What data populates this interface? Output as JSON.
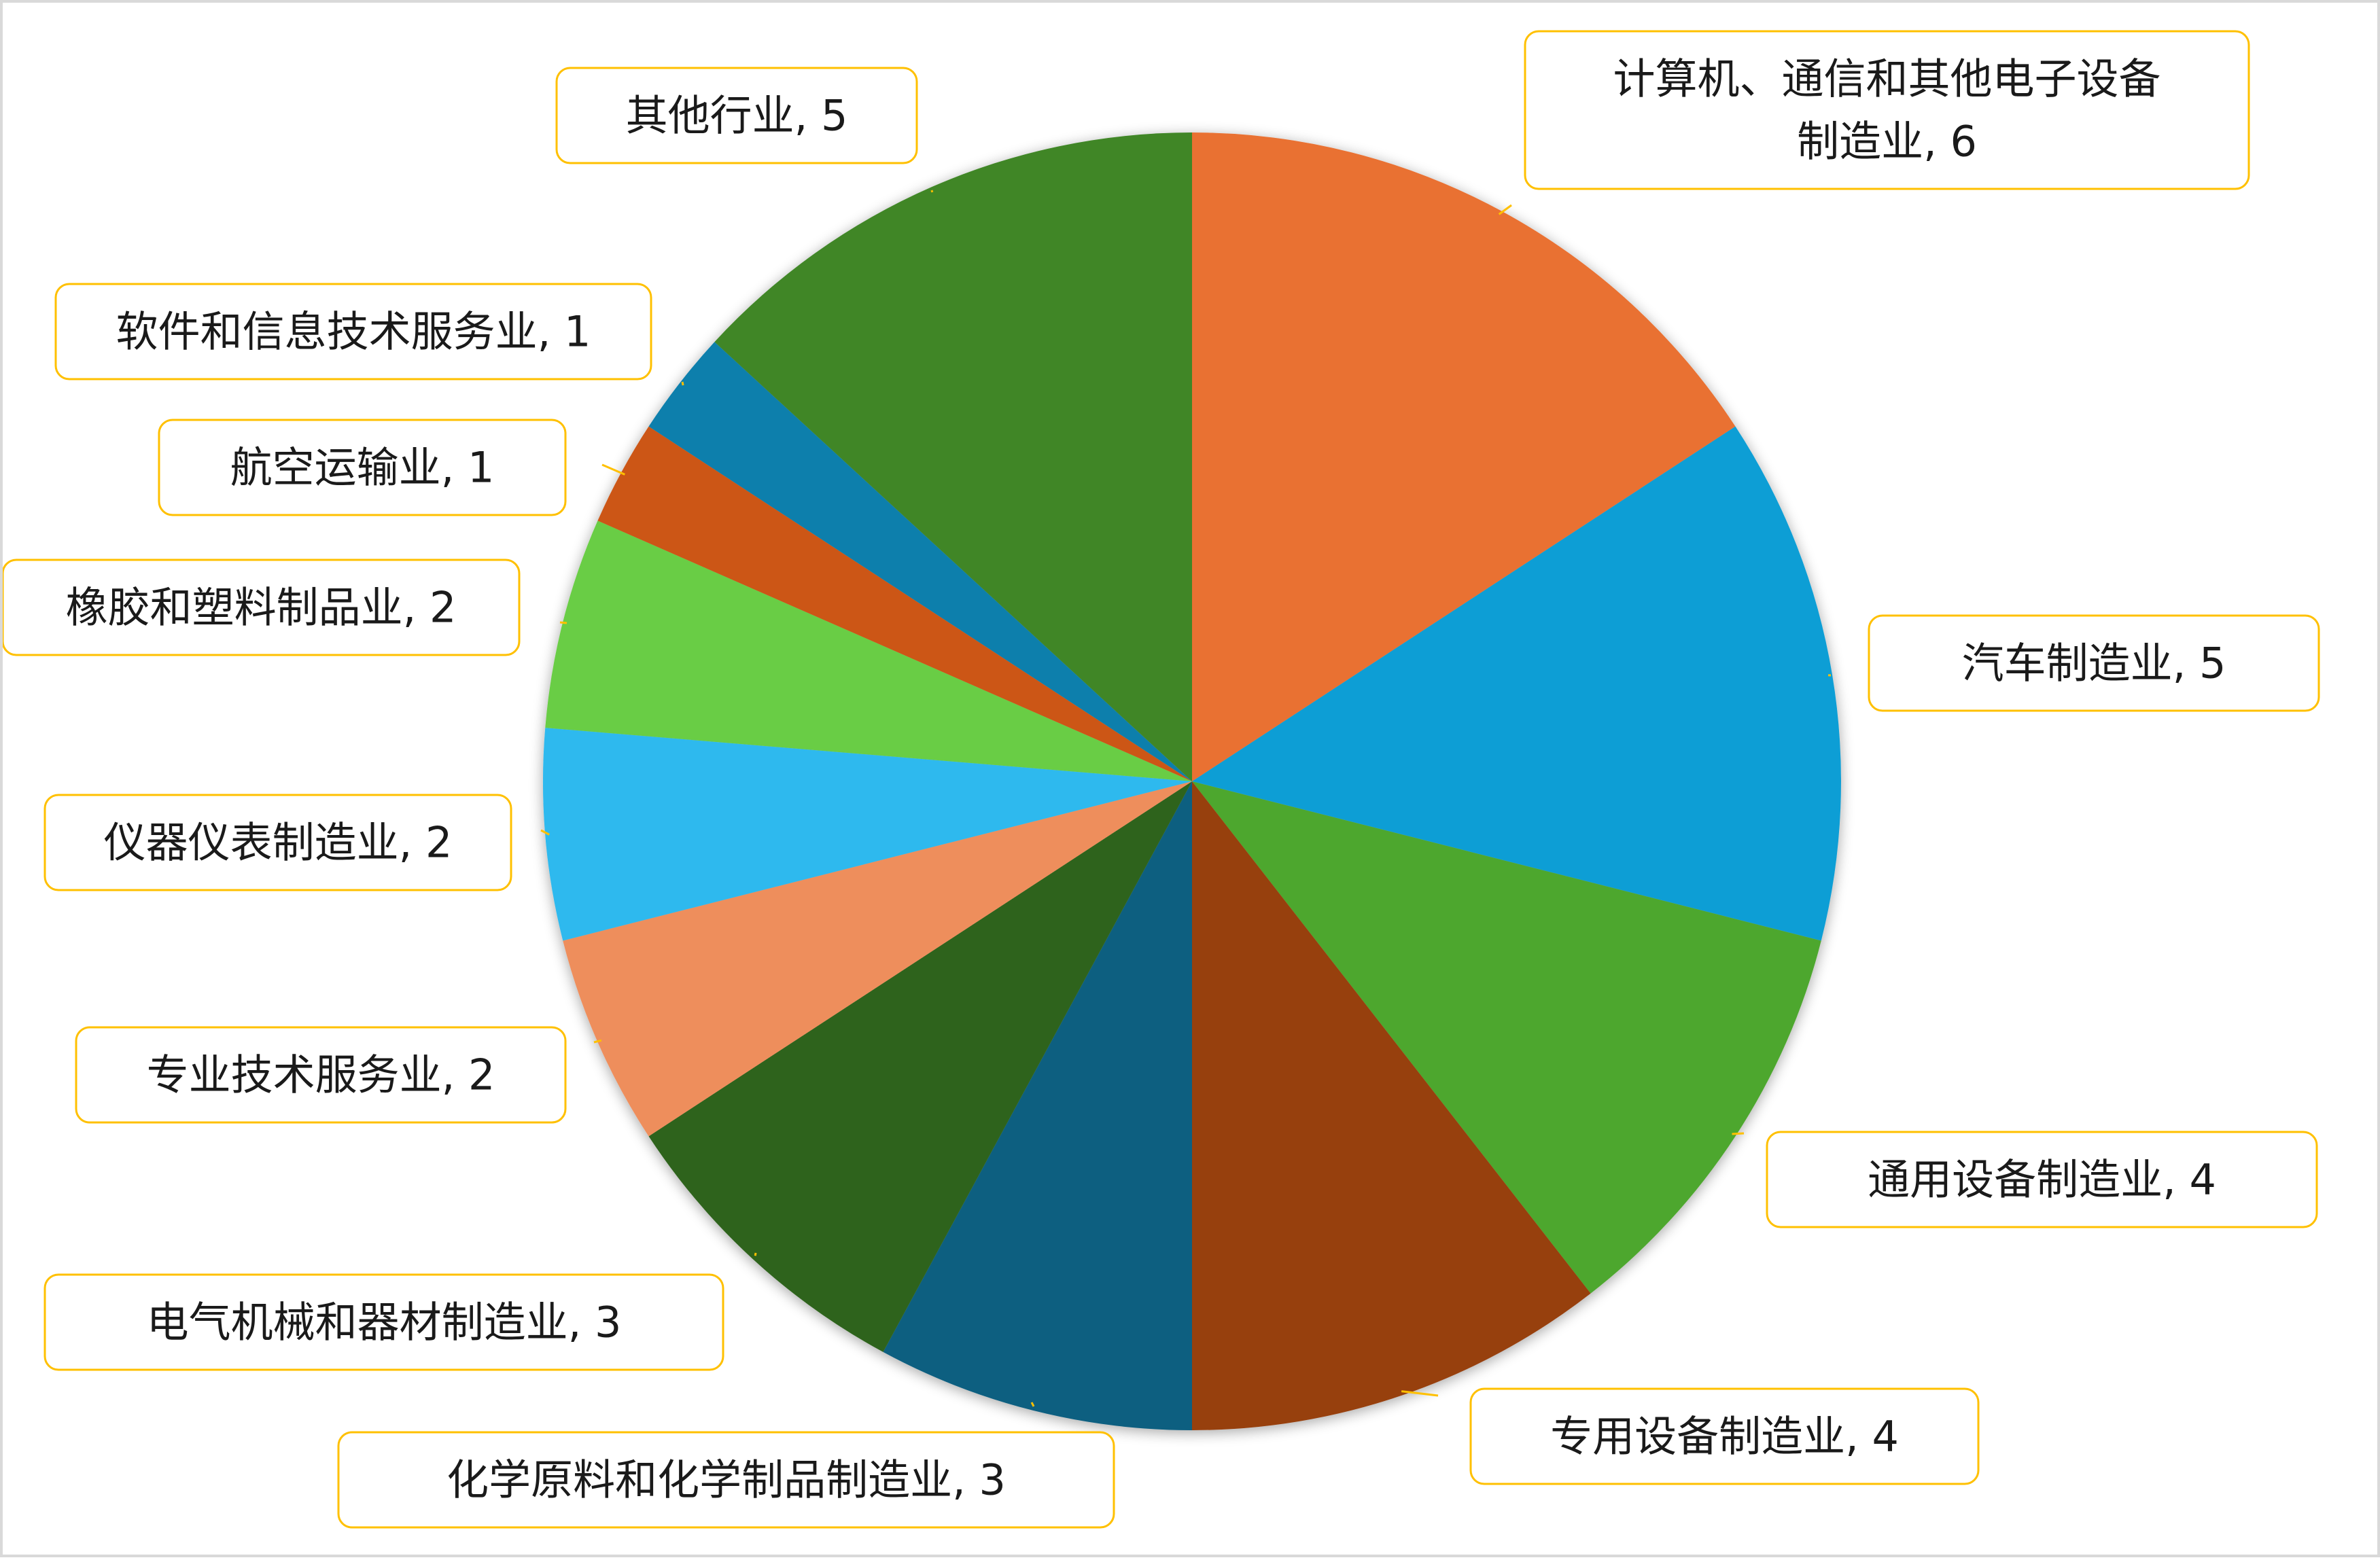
{
  "chart_data": {
    "type": "pie",
    "start_angle_deg": 0,
    "direction": "clockwise",
    "legend": "none",
    "slices": [
      {
        "label": "计算机、通信和其他电子设备制造业",
        "value": 6,
        "color": "#e97132",
        "label_lines": [
          "计算机、通信和其他电子设备",
          "制造业, 6"
        ]
      },
      {
        "label": "汽车制造业",
        "value": 5,
        "color": "#0f9ed5",
        "label_lines": [
          "汽车制造业, 5"
        ]
      },
      {
        "label": "通用设备制造业",
        "value": 4,
        "color": "#4ea72e",
        "label_lines": [
          "通用设备制造业, 4"
        ]
      },
      {
        "label": "专用设备制造业",
        "value": 4,
        "color": "#973f10",
        "label_lines": [
          "专用设备制造业, 4"
        ]
      },
      {
        "label": "化学原料和化学制品制造业",
        "value": 3,
        "color": "#0a5e80",
        "label_lines": [
          "化学原料和化学制品制造业, 3"
        ]
      },
      {
        "label": "电气机械和器材制造业",
        "value": 3,
        "color": "#2f641c",
        "label_lines": [
          "电气机械和器材制造业, 3"
        ]
      },
      {
        "label": "专业技术服务业",
        "value": 2,
        "color": "#ee8e5c",
        "label_lines": [
          "专业技术服务业, 2"
        ]
      },
      {
        "label": "仪器仪表制造业",
        "value": 2,
        "color": "#2db9ee",
        "label_lines": [
          "仪器仪表制造业, 2"
        ]
      },
      {
        "label": "橡胶和塑料制品业",
        "value": 2,
        "color": "#69cd44",
        "label_lines": [
          "橡胶和塑料制品业, 2"
        ]
      },
      {
        "label": "航空运输业",
        "value": 1,
        "color": "#cc5614",
        "label_lines": [
          "航空运输业, 1"
        ]
      },
      {
        "label": "软件和信息技术服务业",
        "value": 1,
        "color": "#0b7fac",
        "label_lines": [
          "软件和信息技术服务业, 1"
        ]
      },
      {
        "label": "其他行业",
        "value": 5,
        "color": "#3f8627",
        "label_lines": [
          "其他行业, 5"
        ]
      }
    ],
    "callout_border_color": "#ffc000"
  }
}
